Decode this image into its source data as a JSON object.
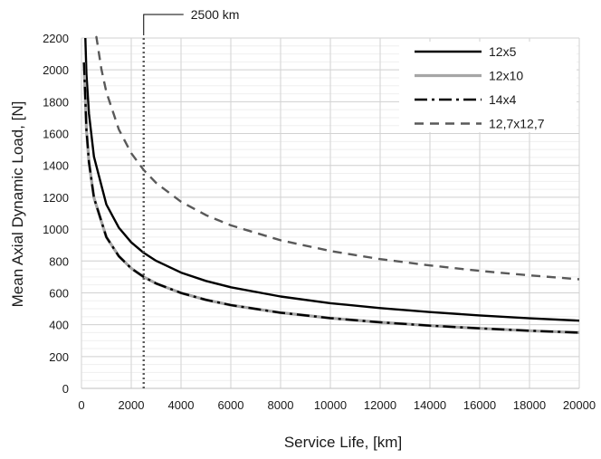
{
  "chart_data": {
    "type": "line",
    "title": "",
    "xlabel": "Service Life, [km]",
    "ylabel": "Mean Axial Dynamic Load, [N]",
    "xlim": [
      0,
      20000
    ],
    "ylim": [
      0,
      2200
    ],
    "xticks": [
      "0",
      "2000",
      "4000",
      "6000",
      "8000",
      "10000",
      "12000",
      "14000",
      "16000",
      "18000",
      "20000"
    ],
    "yticks": [
      "0",
      "200",
      "400",
      "600",
      "800",
      "1000",
      "1200",
      "1400",
      "1600",
      "1800",
      "2000",
      "2200"
    ],
    "grid": true,
    "legend_position": "top-right",
    "annotation": {
      "text": "2500 km",
      "x": 2500
    },
    "series": [
      {
        "name": "12x5",
        "color": "#000000",
        "style": "solid",
        "x": [
          100,
          200,
          300,
          500,
          1000,
          1500,
          2000,
          2500,
          3000,
          4000,
          5000,
          6000,
          8000,
          10000,
          12000,
          14000,
          16000,
          18000,
          20000
        ],
        "values": [
          2487,
          1974,
          1725,
          1455,
          1155,
          1009,
          917,
          851,
          801,
          727,
          675,
          635,
          577,
          535,
          504,
          479,
          458,
          440,
          425
        ]
      },
      {
        "name": "12x10",
        "color": "#a6a6a6",
        "style": "solid",
        "x": [
          100,
          200,
          300,
          500,
          1000,
          1500,
          2000,
          2500,
          3000,
          4000,
          5000,
          6000,
          8000,
          10000,
          12000,
          14000,
          16000,
          18000,
          20000
        ],
        "values": [
          2047,
          1625,
          1420,
          1197,
          950,
          830,
          754,
          700,
          659,
          599,
          556,
          523,
          475,
          441,
          415,
          394,
          377,
          362,
          350
        ]
      },
      {
        "name": "14x4",
        "color": "#000000",
        "style": "dashdot",
        "x": [
          100,
          200,
          300,
          500,
          1000,
          1500,
          2000,
          2500,
          3000,
          4000,
          5000,
          6000,
          8000,
          10000,
          12000,
          14000,
          16000,
          18000,
          20000
        ],
        "values": [
          2047,
          1625,
          1420,
          1197,
          950,
          830,
          754,
          700,
          659,
          599,
          556,
          523,
          475,
          441,
          415,
          394,
          377,
          362,
          350
        ]
      },
      {
        "name": "12,7x12,7",
        "color": "#595959",
        "style": "dashed",
        "x": [
          500,
          600,
          800,
          1000,
          1500,
          2000,
          2500,
          3000,
          4000,
          5000,
          6000,
          8000,
          10000,
          12000,
          14000,
          16000,
          18000,
          20000
        ],
        "values": [
          2345,
          2207,
          2005,
          1861,
          1626,
          1477,
          1371,
          1290,
          1172,
          1088,
          1024,
          930,
          863,
          812,
          772,
          738,
          710,
          685
        ]
      }
    ]
  }
}
